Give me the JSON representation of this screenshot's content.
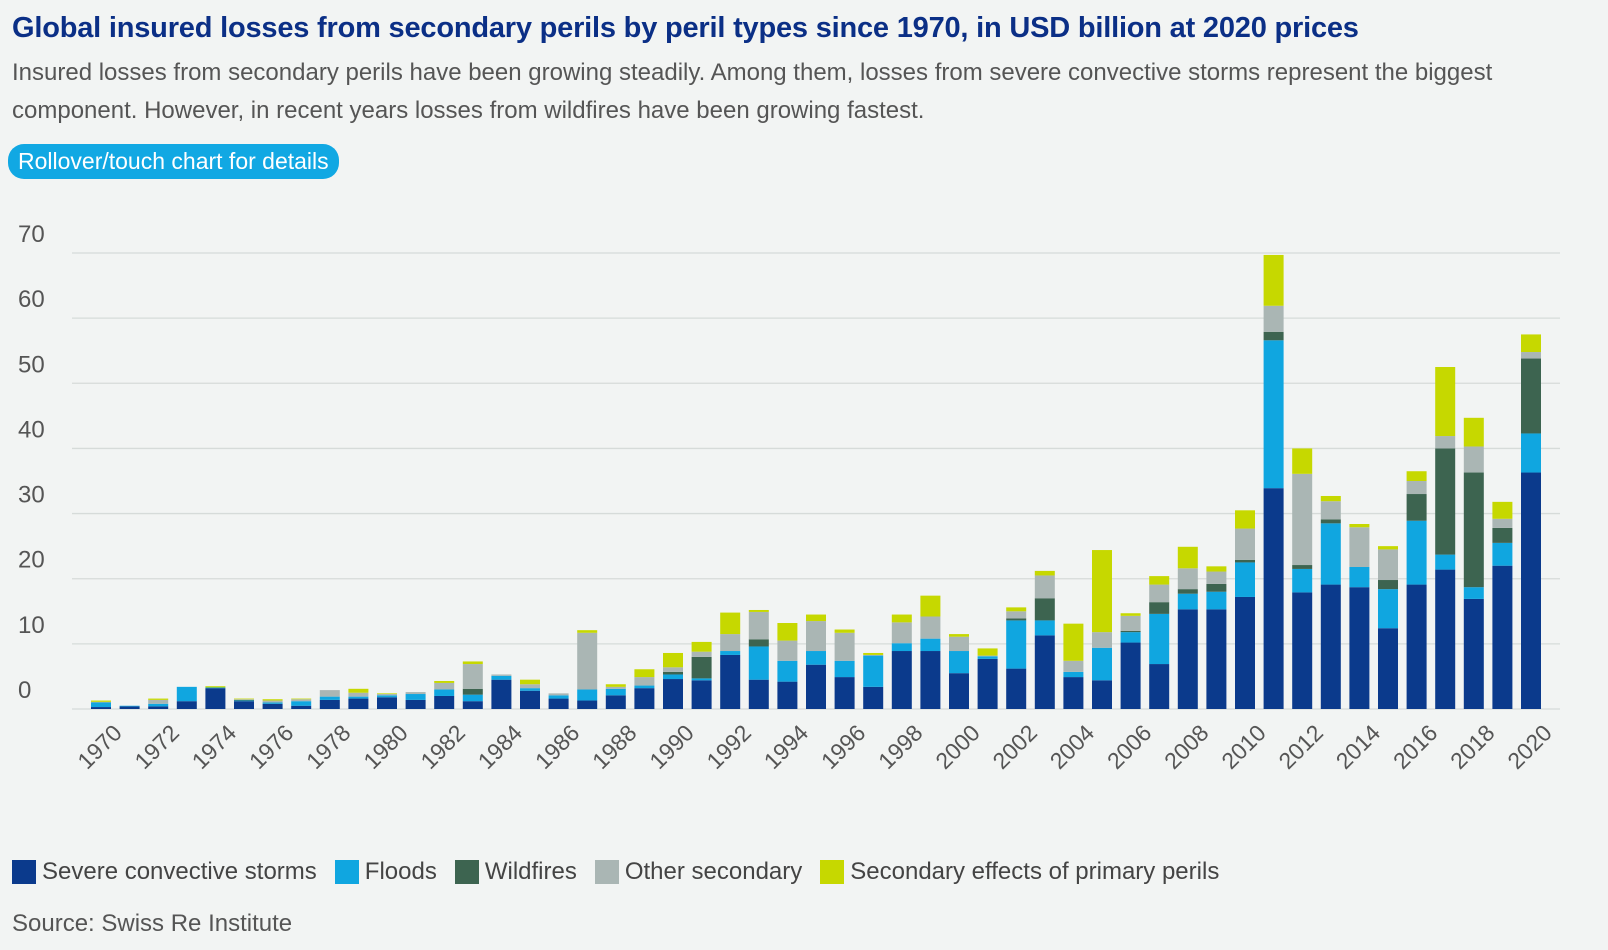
{
  "header": {
    "title": "Global insured losses from secondary perils by peril types since 1970, in USD billion at 2020 prices",
    "subtitle": "Insured losses from secondary perils have been growing steadily. Among them, losses from severe convective storms represent the biggest component. However, in recent years losses from wildfires have been growing fastest.",
    "hint_label": "Rollover/touch chart for details"
  },
  "source": "Source: Swiss Re Institute",
  "chart_data": {
    "type": "bar",
    "stacked": true,
    "x": [
      1970,
      1971,
      1972,
      1973,
      1974,
      1975,
      1976,
      1977,
      1978,
      1979,
      1980,
      1981,
      1982,
      1983,
      1984,
      1985,
      1986,
      1987,
      1988,
      1989,
      1990,
      1991,
      1992,
      1993,
      1994,
      1995,
      1996,
      1997,
      1998,
      1999,
      2000,
      2001,
      2002,
      2003,
      2004,
      2005,
      2006,
      2007,
      2008,
      2009,
      2010,
      2011,
      2012,
      2013,
      2014,
      2015,
      2016,
      2017,
      2018,
      2019,
      2020
    ],
    "x_tick_labels": [
      "1970",
      "1972",
      "1974",
      "1976",
      "1978",
      "1980",
      "1982",
      "1984",
      "1986",
      "1988",
      "1990",
      "1992",
      "1994",
      "1996",
      "1998",
      "2000",
      "2002",
      "2004",
      "2006",
      "2008",
      "2010",
      "2012",
      "2014",
      "2016",
      "2018",
      "2020"
    ],
    "ylim": [
      0,
      70
    ],
    "y_ticks": [
      0,
      10,
      20,
      30,
      40,
      50,
      60,
      70
    ],
    "grid": true,
    "legend_position": "bottom-left",
    "series": [
      {
        "name": "Severe convective storms",
        "color": "#0b3a8c",
        "values": [
          0.3,
          0.4,
          0.4,
          1.2,
          3.2,
          1.2,
          0.8,
          0.5,
          1.4,
          1.6,
          1.8,
          1.4,
          2.0,
          1.2,
          4.5,
          2.8,
          1.6,
          1.3,
          2.1,
          3.2,
          4.6,
          4.4,
          8.3,
          4.5,
          4.2,
          6.8,
          4.9,
          3.4,
          8.9,
          8.9,
          5.5,
          7.7,
          6.2,
          11.3,
          4.9,
          4.4,
          10.2,
          6.9,
          15.3,
          15.3,
          17.2,
          33.9,
          17.9,
          19.1,
          18.7,
          12.4,
          19.1,
          21.4,
          16.9,
          22.0,
          36.3
        ]
      },
      {
        "name": "Floods",
        "color": "#10a6e0",
        "values": [
          0.7,
          0.1,
          0.4,
          2.2,
          0.1,
          0.1,
          0.2,
          0.7,
          0.5,
          0.3,
          0.3,
          0.9,
          1.0,
          1.0,
          0.6,
          0.4,
          0.5,
          1.7,
          1.0,
          0.4,
          0.7,
          0.3,
          0.6,
          5.1,
          3.2,
          2.1,
          2.5,
          4.8,
          1.2,
          1.9,
          3.4,
          0.4,
          7.4,
          2.3,
          0.8,
          5.0,
          1.6,
          7.7,
          2.4,
          2.7,
          5.3,
          22.7,
          3.6,
          9.4,
          3.1,
          6.0,
          9.8,
          2.3,
          1.8,
          3.5,
          6.0
        ]
      },
      {
        "name": "Wildfires",
        "color": "#3d6450",
        "values": [
          0,
          0,
          0,
          0,
          0,
          0.1,
          0,
          0,
          0,
          0,
          0,
          0,
          0,
          0.9,
          0,
          0,
          0,
          0,
          0,
          0,
          0.4,
          3.3,
          0,
          1.1,
          0,
          0,
          0,
          0,
          0,
          0,
          0,
          0,
          0.3,
          3.4,
          0,
          0,
          0.2,
          1.8,
          0.7,
          1.2,
          0.4,
          1.3,
          0.6,
          0.6,
          0,
          1.4,
          4.1,
          16.3,
          17.6,
          2.3,
          11.5
        ]
      },
      {
        "name": "Other secondary",
        "color": "#aab6b4",
        "values": [
          0.1,
          0,
          0.6,
          0,
          0,
          0.1,
          0.3,
          0.3,
          1.0,
          0.6,
          0.2,
          0.3,
          1.0,
          3.8,
          0.2,
          0.6,
          0.3,
          8.7,
          0.3,
          1.3,
          0.7,
          0.8,
          2.6,
          4.2,
          3.1,
          4.6,
          4.3,
          0.1,
          3.2,
          3.4,
          2.2,
          0.1,
          1.1,
          3.5,
          1.7,
          2.4,
          2.3,
          2.7,
          3.2,
          1.9,
          4.8,
          4.0,
          14.0,
          2.8,
          6.1,
          4.7,
          2.0,
          1.9,
          4.0,
          1.4,
          1.0
        ]
      },
      {
        "name": "Secondary effects of primary perils",
        "color": "#c6d800",
        "values": [
          0.2,
          0,
          0.2,
          0,
          0.2,
          0.1,
          0.2,
          0.1,
          0,
          0.6,
          0.1,
          0,
          0.3,
          0.4,
          0,
          0.7,
          0,
          0.4,
          0.4,
          1.2,
          2.2,
          1.5,
          3.3,
          0.3,
          2.7,
          1.0,
          0.5,
          0.3,
          1.2,
          3.2,
          0.4,
          1.1,
          0.6,
          0.7,
          5.7,
          12.6,
          0.4,
          1.3,
          3.3,
          0.8,
          2.8,
          7.8,
          3.9,
          0.8,
          0.5,
          0.5,
          1.5,
          10.6,
          4.4,
          2.6,
          2.7
        ]
      }
    ]
  }
}
